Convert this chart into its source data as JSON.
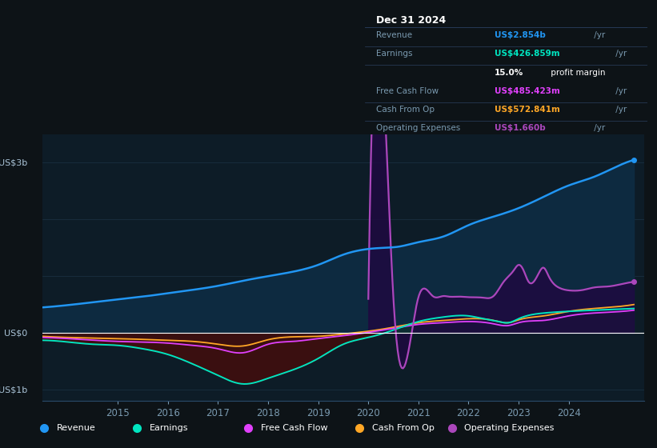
{
  "bg_color": "#0d1317",
  "plot_bg_color": "#0d1c27",
  "grid_color": "#1a2e40",
  "zero_line_color": "#ffffff",
  "revenue_color": "#2196f3",
  "revenue_fill": "#0d2a40",
  "earnings_color": "#00e5c0",
  "earnings_neg_fill": "#3d0f0f",
  "earnings_pos_fill": "#0d3025",
  "fcf_color": "#e040fb",
  "cashop_color": "#ffa726",
  "opex_color": "#ab47bc",
  "opex_fill": "#1e0a40",
  "ylim": [
    -1200000000.0,
    3500000000.0
  ],
  "xlim": [
    2013.5,
    2025.5
  ],
  "xticks": [
    2015,
    2016,
    2017,
    2018,
    2019,
    2020,
    2021,
    2022,
    2023,
    2024
  ],
  "info_date": "Dec 31 2024",
  "info_rows": [
    {
      "label": "Revenue",
      "value": "US$2.854b",
      "suffix": " /yr",
      "color": "#2196f3",
      "bold_val": true
    },
    {
      "label": "Earnings",
      "value": "US$426.859m",
      "suffix": " /yr",
      "color": "#00e5c0",
      "bold_val": true
    },
    {
      "label": "",
      "value": "15.0%",
      "suffix": " profit margin",
      "color": "#ffffff",
      "bold_val": true
    },
    {
      "label": "Free Cash Flow",
      "value": "US$485.423m",
      "suffix": " /yr",
      "color": "#e040fb",
      "bold_val": true
    },
    {
      "label": "Cash From Op",
      "value": "US$572.841m",
      "suffix": " /yr",
      "color": "#ffa726",
      "bold_val": true
    },
    {
      "label": "Operating Expenses",
      "value": "US$1.660b",
      "suffix": " /yr",
      "color": "#ab47bc",
      "bold_val": true
    }
  ],
  "legend_items": [
    {
      "label": "Revenue",
      "color": "#2196f3"
    },
    {
      "label": "Earnings",
      "color": "#00e5c0"
    },
    {
      "label": "Free Cash Flow",
      "color": "#e040fb"
    },
    {
      "label": "Cash From Op",
      "color": "#ffa726"
    },
    {
      "label": "Operating Expenses",
      "color": "#ab47bc"
    }
  ]
}
